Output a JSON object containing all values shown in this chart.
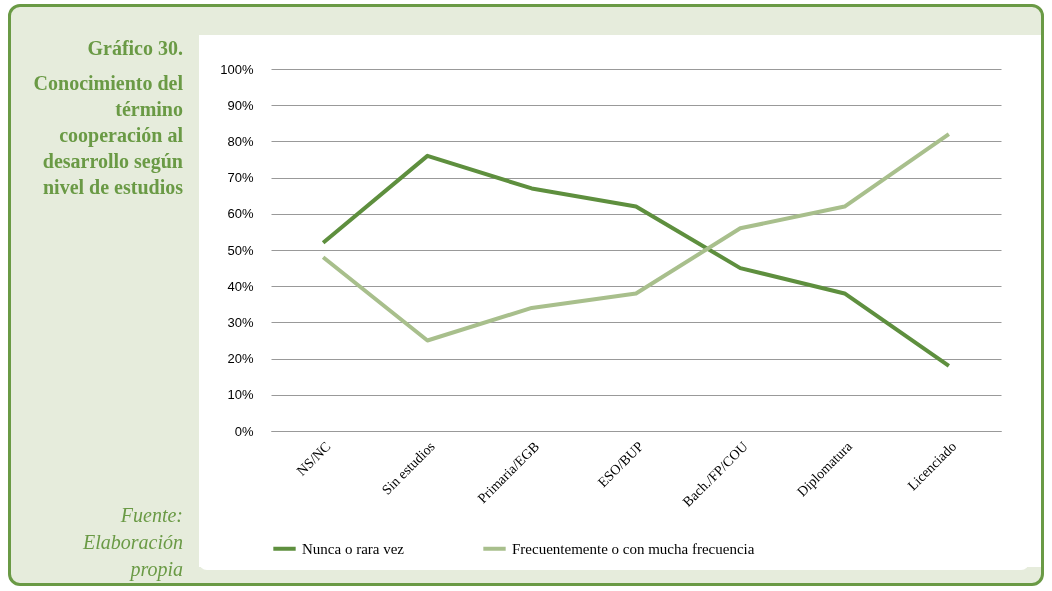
{
  "chart_data": {
    "type": "line",
    "title": "Gráfico 30.",
    "subtitle": "Conocimiento del término cooperación al desarrollo según nivel de estudios",
    "annotations": [
      "Fuente: Elaboración propia"
    ],
    "categories": [
      "NS/NC",
      "Sin estudios",
      "Primaria/EGB",
      "ESO/BUP",
      "Bach./FP/COU",
      "Diplomatura",
      "Licenciado"
    ],
    "series": [
      {
        "name": "Nunca o rara vez",
        "color": "#5e8f3e",
        "values": [
          52,
          76,
          67,
          62,
          45,
          38,
          18
        ]
      },
      {
        "name": "Frecuentemente o con mucha frecuencia",
        "color": "#a8bf8c",
        "values": [
          48,
          25,
          34,
          38,
          56,
          62,
          82
        ]
      }
    ],
    "ylim": [
      0,
      100
    ],
    "yticks": [
      {
        "value": 0,
        "label": "0%"
      },
      {
        "value": 10,
        "label": "10%"
      },
      {
        "value": 20,
        "label": "20%"
      },
      {
        "value": 30,
        "label": "30%"
      },
      {
        "value": 40,
        "label": "40%"
      },
      {
        "value": 50,
        "label": "50%"
      },
      {
        "value": 60,
        "label": "60%"
      },
      {
        "value": 70,
        "label": "70%"
      },
      {
        "value": 80,
        "label": "80%"
      },
      {
        "value": 90,
        "label": "90%"
      },
      {
        "value": 100,
        "label": "100%"
      }
    ],
    "grid": "y",
    "legend": "bottom"
  }
}
